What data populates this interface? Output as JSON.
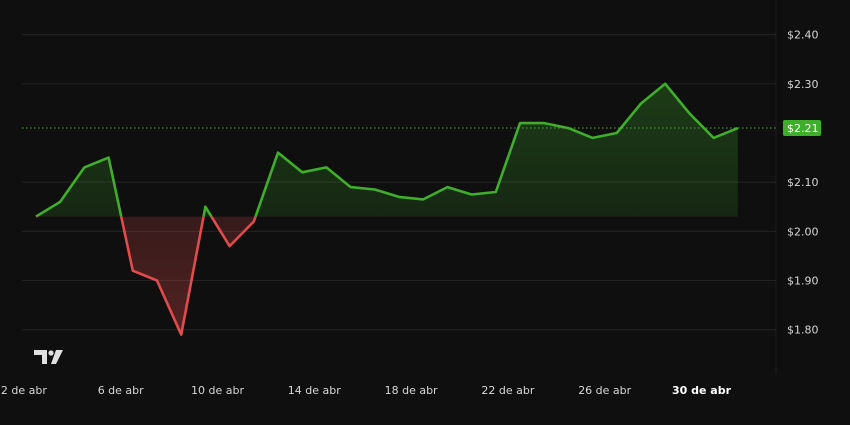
{
  "chart_data": {
    "type": "area",
    "baseline": 2.03,
    "current_price": 2.21,
    "current_price_label": "$2.21",
    "ylim": [
      1.71,
      2.45
    ],
    "y_ticks": [
      {
        "value": 2.4,
        "label": "$2.40"
      },
      {
        "value": 2.3,
        "label": "$2.30"
      },
      {
        "value": 2.21,
        "label": "$2.21"
      },
      {
        "value": 2.1,
        "label": "$2.10"
      },
      {
        "value": 2.0,
        "label": "$2.00"
      },
      {
        "value": 1.9,
        "label": "$1.90"
      },
      {
        "value": 1.8,
        "label": "$1.80"
      }
    ],
    "x_ticks": [
      {
        "day": 2,
        "label": "2 de abr",
        "bold": false
      },
      {
        "day": 6,
        "label": "6 de abr",
        "bold": false
      },
      {
        "day": 10,
        "label": "10 de abr",
        "bold": false
      },
      {
        "day": 14,
        "label": "14 de abr",
        "bold": false
      },
      {
        "day": 18,
        "label": "18 de abr",
        "bold": false
      },
      {
        "day": 22,
        "label": "22 de abr",
        "bold": false
      },
      {
        "day": 26,
        "label": "26 de abr",
        "bold": false
      },
      {
        "day": 30,
        "label": "30 de abr",
        "bold": true
      }
    ],
    "x": [
      2.5,
      3.5,
      4.5,
      5.5,
      6.5,
      7.5,
      8.5,
      9.5,
      10.5,
      11.5,
      12.5,
      13.5,
      14.5,
      15.5,
      16.5,
      17.5,
      18.5,
      19.5,
      20.5,
      21.5,
      22.5,
      23.5,
      24.5,
      25.5,
      26.5,
      27.5,
      28.5,
      29.5,
      30.5,
      31.5
    ],
    "values": [
      2.03,
      2.06,
      2.13,
      2.15,
      1.92,
      1.9,
      1.79,
      2.05,
      1.97,
      2.02,
      2.16,
      2.12,
      2.13,
      2.09,
      2.085,
      2.07,
      2.065,
      2.09,
      2.075,
      2.08,
      2.22,
      2.22,
      2.21,
      2.19,
      2.2,
      2.26,
      2.3,
      2.24,
      2.19,
      2.21
    ],
    "grid": true,
    "colors": {
      "background": "#0f0f0f",
      "grid": "#242424",
      "up": "#3fae2a",
      "down": "#e24b4b",
      "axis_text": "#d6d6d6",
      "price_badge": "#3fae2a",
      "price_line": "#4caf3a"
    }
  },
  "logo": {
    "name": "tradingview-logo",
    "text": "TV"
  }
}
